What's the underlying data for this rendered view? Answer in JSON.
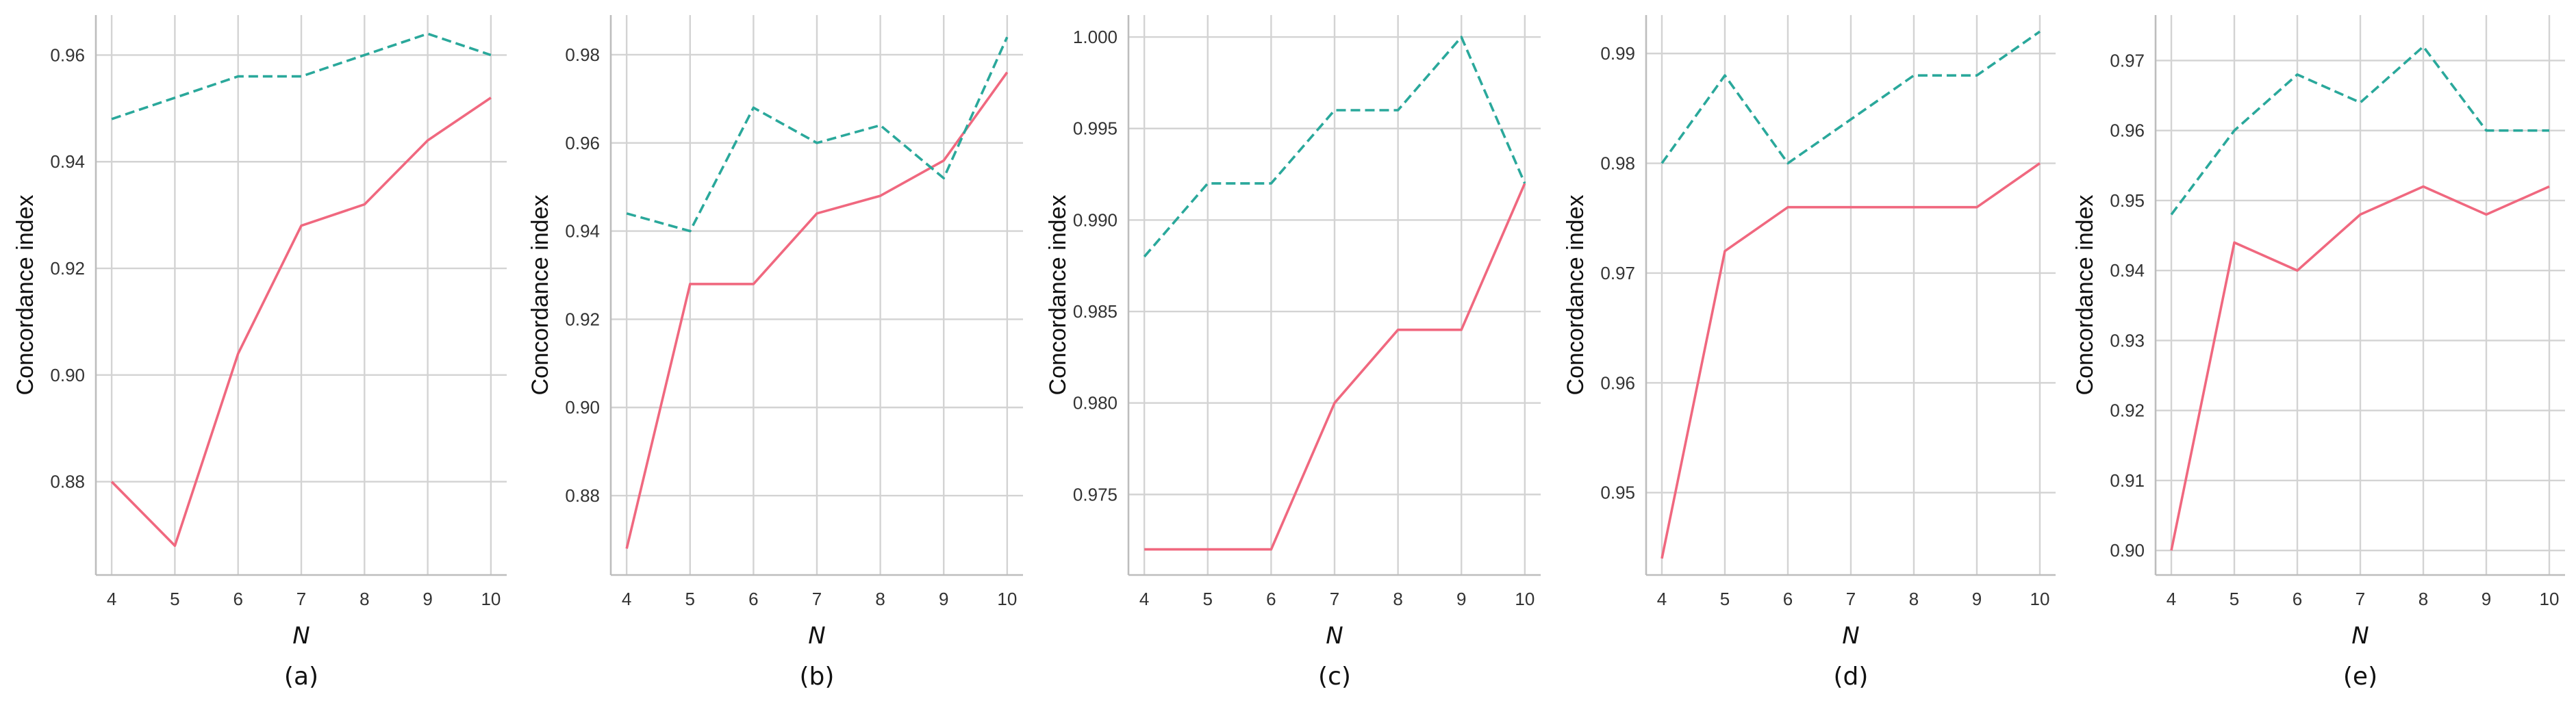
{
  "colors": {
    "solid_series": "#f0687f",
    "dashed_series": "#2aa89b"
  },
  "chart_data": [
    {
      "type": "line",
      "caption": "(a)",
      "xlabel": "N",
      "ylabel": "Concordance index",
      "x": [
        4,
        5,
        6,
        7,
        8,
        9,
        10
      ],
      "xlim": [
        3.75,
        10.25
      ],
      "ylim": [
        0.8625,
        0.9675
      ],
      "yticks": [
        0.88,
        0.9,
        0.92,
        0.94,
        0.96
      ],
      "ytick_labels": [
        "0.88",
        "0.90",
        "0.92",
        "0.94",
        "0.96"
      ],
      "grid": true,
      "series": [
        {
          "style": "solid",
          "values": [
            0.88,
            0.868,
            0.904,
            0.928,
            0.932,
            0.944,
            0.952
          ]
        },
        {
          "style": "dashed",
          "values": [
            0.948,
            0.952,
            0.956,
            0.956,
            0.96,
            0.964,
            0.96
          ]
        }
      ]
    },
    {
      "type": "line",
      "caption": "(b)",
      "xlabel": "N",
      "ylabel": "Concordance index",
      "x": [
        4,
        5,
        6,
        7,
        8,
        9,
        10
      ],
      "xlim": [
        3.75,
        10.25
      ],
      "ylim": [
        0.862,
        0.989
      ],
      "yticks": [
        0.88,
        0.9,
        0.92,
        0.94,
        0.96,
        0.98
      ],
      "ytick_labels": [
        "0.88",
        "0.90",
        "0.92",
        "0.94",
        "0.96",
        "0.98"
      ],
      "grid": true,
      "series": [
        {
          "style": "solid",
          "values": [
            0.868,
            0.928,
            0.928,
            0.944,
            0.948,
            0.956,
            0.976
          ]
        },
        {
          "style": "dashed",
          "values": [
            0.944,
            0.94,
            0.968,
            0.96,
            0.964,
            0.952,
            0.984
          ]
        }
      ]
    },
    {
      "type": "line",
      "caption": "(c)",
      "xlabel": "N",
      "ylabel": "Concordance index",
      "x": [
        4,
        5,
        6,
        7,
        8,
        9,
        10
      ],
      "xlim": [
        3.75,
        10.25
      ],
      "ylim": [
        0.9706,
        1.0012
      ],
      "yticks": [
        0.975,
        0.98,
        0.985,
        0.99,
        0.995,
        1.0
      ],
      "ytick_labels": [
        "0.975",
        "0.980",
        "0.985",
        "0.990",
        "0.995",
        "1.000"
      ],
      "grid": true,
      "series": [
        {
          "style": "solid",
          "values": [
            0.972,
            0.972,
            0.972,
            0.98,
            0.984,
            0.984,
            0.992
          ]
        },
        {
          "style": "dashed",
          "values": [
            0.988,
            0.992,
            0.992,
            0.996,
            0.996,
            1.0,
            0.992
          ]
        }
      ]
    },
    {
      "type": "line",
      "caption": "(d)",
      "xlabel": "N",
      "ylabel": "Concordance index",
      "x": [
        4,
        5,
        6,
        7,
        8,
        9,
        10
      ],
      "xlim": [
        3.75,
        10.25
      ],
      "ylim": [
        0.9425,
        0.9935
      ],
      "yticks": [
        0.95,
        0.96,
        0.97,
        0.98,
        0.99
      ],
      "ytick_labels": [
        "0.95",
        "0.96",
        "0.97",
        "0.98",
        "0.99"
      ],
      "grid": true,
      "series": [
        {
          "style": "solid",
          "values": [
            0.944,
            0.972,
            0.976,
            0.976,
            0.976,
            0.976,
            0.98
          ]
        },
        {
          "style": "dashed",
          "values": [
            0.98,
            0.988,
            0.98,
            0.984,
            0.988,
            0.988,
            0.992
          ]
        }
      ]
    },
    {
      "type": "line",
      "caption": "(e)",
      "xlabel": "N",
      "ylabel": "Concordance index",
      "x": [
        4,
        5,
        6,
        7,
        8,
        9,
        10
      ],
      "xlim": [
        3.75,
        10.25
      ],
      "ylim": [
        0.8965,
        0.9765
      ],
      "yticks": [
        0.9,
        0.91,
        0.92,
        0.93,
        0.94,
        0.95,
        0.96,
        0.97
      ],
      "ytick_labels": [
        "0.90",
        "0.91",
        "0.92",
        "0.93",
        "0.94",
        "0.95",
        "0.96",
        "0.97"
      ],
      "grid": true,
      "series": [
        {
          "style": "solid",
          "values": [
            0.9,
            0.944,
            0.94,
            0.948,
            0.952,
            0.948,
            0.952
          ]
        },
        {
          "style": "dashed",
          "values": [
            0.948,
            0.96,
            0.968,
            0.964,
            0.972,
            0.96,
            0.96
          ]
        }
      ]
    }
  ]
}
